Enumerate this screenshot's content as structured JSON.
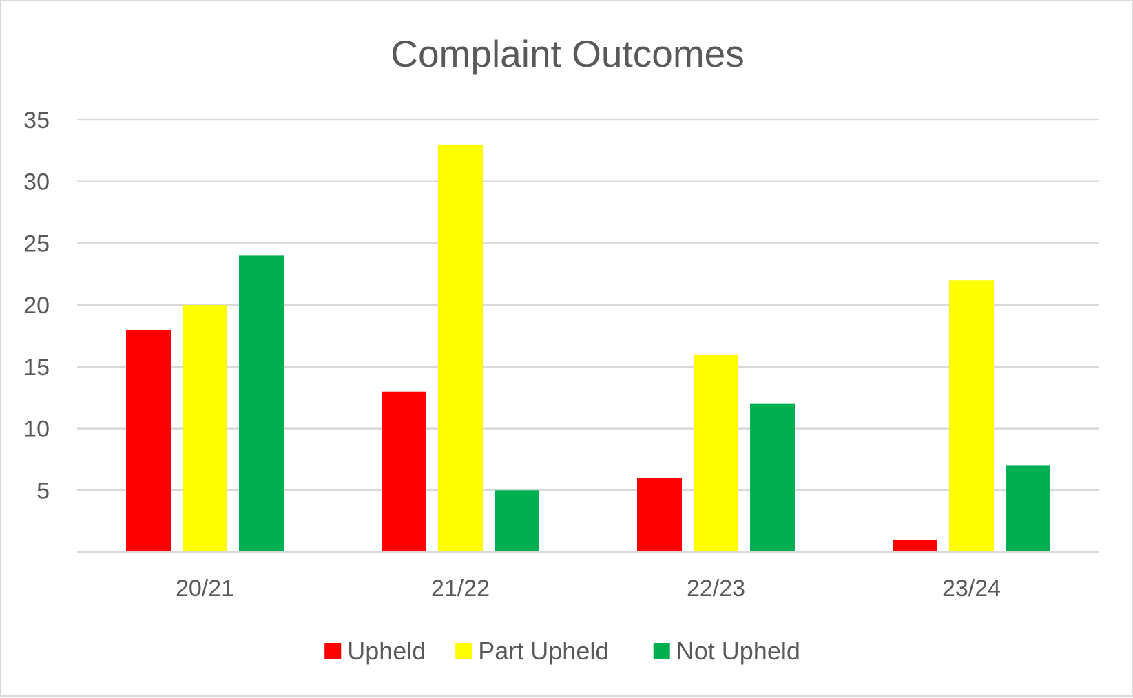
{
  "chart_data": {
    "type": "bar",
    "title": "Complaint Outcomes",
    "xlabel": "",
    "ylabel": "",
    "categories": [
      "20/21",
      "21/22",
      "22/23",
      "23/24"
    ],
    "series": [
      {
        "name": "Upheld",
        "color": "#ff0000",
        "values": [
          18,
          13,
          6,
          1
        ]
      },
      {
        "name": "Part Upheld",
        "color": "#ffff00",
        "values": [
          20,
          33,
          16,
          22
        ]
      },
      {
        "name": "Not Upheld",
        "color": "#00b050",
        "values": [
          24,
          5,
          12,
          7
        ]
      }
    ],
    "ylim": [
      0,
      35
    ],
    "yticks": [
      5,
      10,
      15,
      20,
      25,
      30,
      35
    ],
    "ytick_labels": [
      "5",
      "10",
      "15",
      "20",
      "25",
      "30",
      "35"
    ],
    "grid": true,
    "legend_position": "bottom"
  }
}
